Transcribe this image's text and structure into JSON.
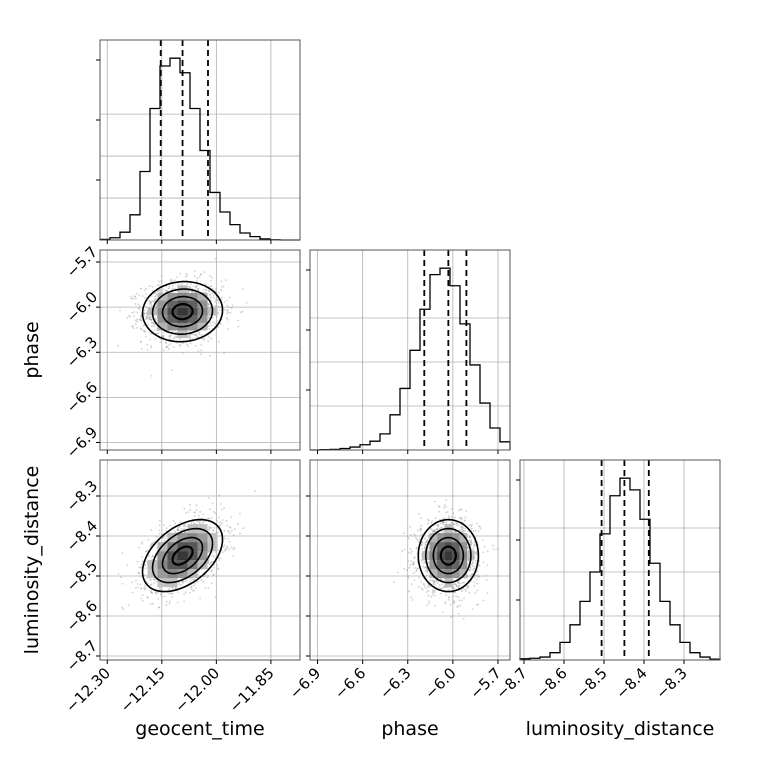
{
  "chart_data": {
    "type": "corner",
    "parameters": [
      "geocent_time",
      "phase",
      "luminosity_distance"
    ],
    "labels": {
      "geocent_time": "geocent_time",
      "phase": "phase",
      "luminosity_distance": "luminosity_distance"
    },
    "ranges": {
      "geocent_time": [
        -12.32,
        -11.77
      ],
      "phase": [
        -6.95,
        -5.62
      ],
      "luminosity_distance": [
        -8.71,
        -8.21
      ]
    },
    "ticks": {
      "geocent_time": [
        -12.3,
        -12.15,
        -12.0,
        -11.85
      ],
      "phase": [
        -6.9,
        -6.6,
        -6.3,
        -6.0,
        -5.7
      ],
      "luminosity_distance": [
        -8.7,
        -8.6,
        -8.5,
        -8.4,
        -8.3
      ]
    },
    "tick_labels": {
      "geocent_time": [
        "−12.30",
        "−12.15",
        "−12.00",
        "−11.85"
      ],
      "phase": [
        "−6.9",
        "−6.6",
        "−6.3",
        "−6.0",
        "−5.7"
      ],
      "luminosity_distance": [
        "−8.7",
        "−8.6",
        "−8.5",
        "−8.4",
        "−8.3"
      ]
    },
    "quantiles": {
      "geocent_time": [
        -12.153,
        -12.093,
        -12.023
      ],
      "phase": [
        -6.19,
        -6.03,
        -5.91
      ],
      "luminosity_distance": [
        -8.506,
        -8.449,
        -8.388
      ]
    },
    "histograms": {
      "geocent_time": {
        "bins": [
          -12.32,
          -12.2925,
          -12.265,
          -12.2375,
          -12.21,
          -12.1825,
          -12.155,
          -12.1275,
          -12.1,
          -12.0725,
          -12.045,
          -12.0175,
          -11.99,
          -11.9625,
          -11.935,
          -11.9075,
          -11.88,
          -11.8525,
          -11.825,
          -11.7975,
          -11.77
        ],
        "counts": [
          2,
          8,
          28,
          90,
          245,
          470,
          622,
          650,
          598,
          470,
          320,
          170,
          100,
          55,
          25,
          12,
          4,
          1,
          0,
          0
        ]
      },
      "phase": {
        "bins": [
          -6.95,
          -6.8835,
          -6.817,
          -6.7505,
          -6.684,
          -6.6175,
          -6.551,
          -6.4845,
          -6.418,
          -6.3515,
          -6.285,
          -6.2185,
          -6.152,
          -6.0855,
          -6.019,
          -5.9525,
          -5.886,
          -5.8195,
          -5.753,
          -5.6865,
          -5.62
        ],
        "counts": [
          0,
          1,
          2,
          5,
          10,
          18,
          30,
          55,
          120,
          210,
          340,
          480,
          598,
          620,
          560,
          430,
          290,
          160,
          75,
          28
        ]
      },
      "luminosity_distance": {
        "bins": [
          -8.71,
          -8.685,
          -8.66,
          -8.635,
          -8.61,
          -8.585,
          -8.56,
          -8.535,
          -8.51,
          -8.485,
          -8.46,
          -8.435,
          -8.41,
          -8.385,
          -8.36,
          -8.335,
          -8.31,
          -8.285,
          -8.26,
          -8.235,
          -8.21
        ],
        "counts": [
          4,
          6,
          10,
          25,
          60,
          120,
          200,
          300,
          430,
          560,
          620,
          580,
          480,
          330,
          200,
          120,
          60,
          25,
          10,
          3
        ]
      }
    },
    "pairs": [
      {
        "x": "geocent_time",
        "y": "phase",
        "mean": [
          -12.093,
          -6.03
        ],
        "sigma": [
          0.055,
          0.1
        ],
        "rho": 0.05
      },
      {
        "x": "geocent_time",
        "y": "luminosity_distance",
        "mean": [
          -12.093,
          -8.449
        ],
        "sigma": [
          0.055,
          0.045
        ],
        "rho": 0.45
      },
      {
        "x": "phase",
        "y": "luminosity_distance",
        "mean": [
          -6.03,
          -8.449
        ],
        "sigma": [
          0.1,
          0.045
        ],
        "rho": 0.0
      }
    ],
    "contour_levels_sigma": [
      0.5,
      1.0,
      1.5,
      2.0
    ],
    "grid": true,
    "colors": {
      "hist": "#000000",
      "scatter": "#9a9a9a",
      "contour": "#000000",
      "quantile": "#000000"
    }
  }
}
